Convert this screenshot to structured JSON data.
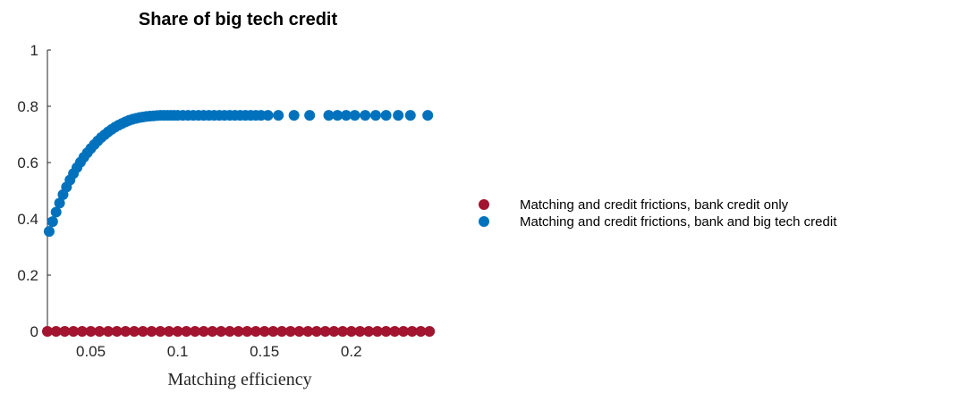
{
  "chart_data": {
    "type": "scatter",
    "title": "Share of big tech credit",
    "xlabel": "Matching efficiency",
    "ylabel": "",
    "xlim": [
      0.025,
      0.247
    ],
    "ylim": [
      0,
      1
    ],
    "xticks": [
      0.05,
      0.1,
      0.15,
      0.2
    ],
    "xtick_labels": [
      "0.05",
      "0.1",
      "0.15",
      "0.2"
    ],
    "yticks": [
      0,
      0.2,
      0.4,
      0.6,
      0.8,
      1
    ],
    "ytick_labels": [
      "0",
      "0.2",
      "0.4",
      "0.6",
      "0.8",
      "1"
    ],
    "grid": false,
    "legend_position": "right",
    "series": [
      {
        "name": "Matching and credit frictions, bank credit only",
        "color": "#A2142F",
        "x": [
          0.025,
          0.03,
          0.035,
          0.04,
          0.045,
          0.05,
          0.055,
          0.06,
          0.065,
          0.07,
          0.075,
          0.08,
          0.085,
          0.09,
          0.095,
          0.1,
          0.105,
          0.11,
          0.115,
          0.12,
          0.125,
          0.13,
          0.135,
          0.14,
          0.145,
          0.15,
          0.155,
          0.16,
          0.165,
          0.17,
          0.175,
          0.18,
          0.185,
          0.19,
          0.195,
          0.2,
          0.205,
          0.21,
          0.215,
          0.22,
          0.225,
          0.23,
          0.235,
          0.24,
          0.245
        ],
        "y": [
          0,
          0,
          0,
          0,
          0,
          0,
          0,
          0,
          0,
          0,
          0,
          0,
          0,
          0,
          0,
          0,
          0,
          0,
          0,
          0,
          0,
          0,
          0,
          0,
          0,
          0,
          0,
          0,
          0,
          0,
          0,
          0,
          0,
          0,
          0,
          0,
          0,
          0,
          0,
          0,
          0,
          0,
          0,
          0,
          0
        ]
      },
      {
        "name": "Matching and credit frictions, bank and big tech credit",
        "color": "#0072BD",
        "x": [
          0.026,
          0.028,
          0.03,
          0.032,
          0.034,
          0.036,
          0.038,
          0.04,
          0.042,
          0.044,
          0.046,
          0.048,
          0.05,
          0.052,
          0.054,
          0.056,
          0.058,
          0.06,
          0.062,
          0.064,
          0.066,
          0.068,
          0.07,
          0.072,
          0.074,
          0.076,
          0.078,
          0.08,
          0.082,
          0.084,
          0.086,
          0.088,
          0.09,
          0.092,
          0.094,
          0.096,
          0.098,
          0.1,
          0.103,
          0.106,
          0.109,
          0.112,
          0.115,
          0.118,
          0.121,
          0.124,
          0.127,
          0.13,
          0.133,
          0.136,
          0.139,
          0.142,
          0.145,
          0.148,
          0.152,
          0.158,
          0.167,
          0.176,
          0.187,
          0.192,
          0.197,
          0.202,
          0.208,
          0.214,
          0.22,
          0.227,
          0.234,
          0.244
        ],
        "y": [
          0.355,
          0.39,
          0.424,
          0.456,
          0.486,
          0.513,
          0.538,
          0.561,
          0.582,
          0.601,
          0.619,
          0.635,
          0.65,
          0.664,
          0.677,
          0.689,
          0.699,
          0.709,
          0.718,
          0.726,
          0.733,
          0.739,
          0.745,
          0.75,
          0.754,
          0.757,
          0.76,
          0.762,
          0.764,
          0.765,
          0.766,
          0.767,
          0.768,
          0.768,
          0.768,
          0.768,
          0.768,
          0.768,
          0.768,
          0.768,
          0.768,
          0.768,
          0.768,
          0.768,
          0.768,
          0.768,
          0.768,
          0.768,
          0.768,
          0.768,
          0.768,
          0.768,
          0.768,
          0.768,
          0.768,
          0.768,
          0.768,
          0.768,
          0.768,
          0.768,
          0.768,
          0.768,
          0.768,
          0.768,
          0.768,
          0.768,
          0.768,
          0.768
        ]
      }
    ]
  }
}
